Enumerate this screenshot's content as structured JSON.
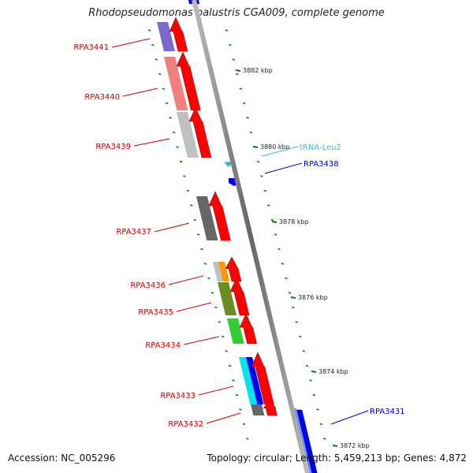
{
  "title": "Rhodopseudomonas palustris CGA009, complete genome",
  "footer": {
    "accession": "Accession: NC_005296",
    "topology": "Topology: circular",
    "length": "Length: 5,459,213 bp",
    "genes": "Genes: 4,872"
  },
  "colors": {
    "forward_label": "#cc0000",
    "reverse_label": "#0000cc",
    "trna_label": "#33bbdd",
    "backbone": "#888888",
    "tick": "#008000",
    "forward_cds": "#ff0000",
    "reverse_cds": "#0000ee"
  },
  "genome_axis": {
    "kbp_labels": [
      "3882 kbp",
      "3880 kbp",
      "3878 kbp",
      "3876 kbp",
      "3874 kbp",
      "3872 kbp"
    ]
  },
  "features": [
    {
      "name": "RPA3441",
      "strand": "forward",
      "cog_color": "#7b68cc"
    },
    {
      "name": "RPA3440",
      "strand": "forward",
      "cog_color": "#f08080"
    },
    {
      "name": "RPA3439",
      "strand": "forward",
      "cog_color": "#c0c0c0"
    },
    {
      "name": "tRNA-Leu2",
      "strand": "reverse",
      "kind": "tRNA"
    },
    {
      "name": "RPA3438",
      "strand": "reverse"
    },
    {
      "name": "RPA3437",
      "strand": "forward",
      "cog_color": "#666666"
    },
    {
      "name": "RPA3436",
      "strand": "forward",
      "cog_color": "#ff9900"
    },
    {
      "name": "RPA3435",
      "strand": "forward",
      "cog_color": "#6b8e23"
    },
    {
      "name": "RPA3434",
      "strand": "forward",
      "cog_color": "#33cc33"
    },
    {
      "name": "RPA3433",
      "strand": "forward",
      "cog_color": "#00e5ee"
    },
    {
      "name": "RPA3432",
      "strand": "forward",
      "cog_color": "#666666"
    },
    {
      "name": "RPA3431",
      "strand": "reverse",
      "cog_color": "#0000ee"
    }
  ]
}
